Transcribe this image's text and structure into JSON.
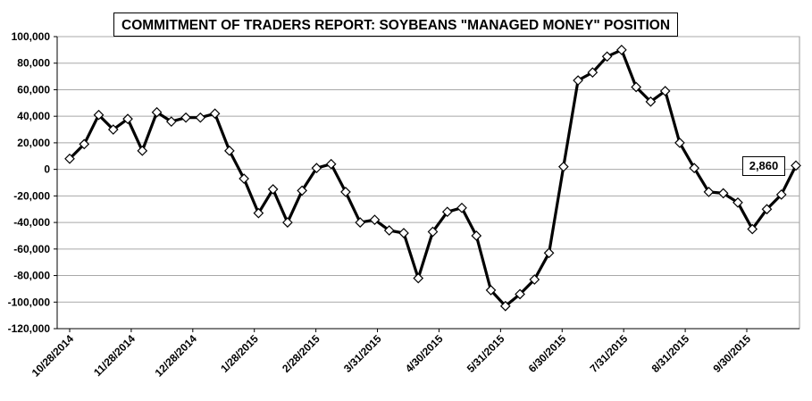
{
  "chart_data": {
    "type": "line",
    "title": "COMMITMENT OF TRADERS REPORT:  SOYBEANS \"MANAGED MONEY\" POSITION",
    "xlabel": "",
    "ylabel": "",
    "ylim": [
      -120000,
      100000
    ],
    "yticks": [
      100000,
      80000,
      60000,
      40000,
      20000,
      0,
      -20000,
      -40000,
      -60000,
      -80000,
      -100000,
      -120000
    ],
    "ytick_labels": [
      "100,000",
      "80,000",
      "60,000",
      "40,000",
      "20,000",
      "0",
      "-20,000",
      "-40,000",
      "-60,000",
      "-80,000",
      "-100,000",
      "-120,000"
    ],
    "x_tick_labels": [
      "10/28/2014",
      "11/28/2014",
      "12/28/2014",
      "1/28/2015",
      "2/28/2015",
      "3/31/2015",
      "4/30/2015",
      "5/31/2015",
      "6/30/2015",
      "7/31/2015",
      "8/31/2015",
      "9/30/2015"
    ],
    "grid": true,
    "marker": "diamond",
    "series": [
      {
        "values": [
          8000,
          19000,
          41000,
          30000,
          38000,
          14000,
          43000,
          36000,
          39000,
          39000,
          42000,
          14000,
          -7000,
          -33000,
          -15000,
          -40000,
          -16000,
          1000,
          4000,
          -17000,
          -40000,
          -38000,
          -46000,
          -48000,
          -82000,
          -47000,
          -32000,
          -29000,
          -50000,
          -91000,
          -103000,
          -94000,
          -83000,
          -63000,
          2000,
          67000,
          73000,
          85000,
          90000,
          62000,
          51000,
          59000,
          20000,
          1000,
          -17000,
          -18000,
          -25000,
          -45000,
          -30000,
          -19000,
          2860
        ]
      }
    ],
    "annotation": "2,860"
  }
}
